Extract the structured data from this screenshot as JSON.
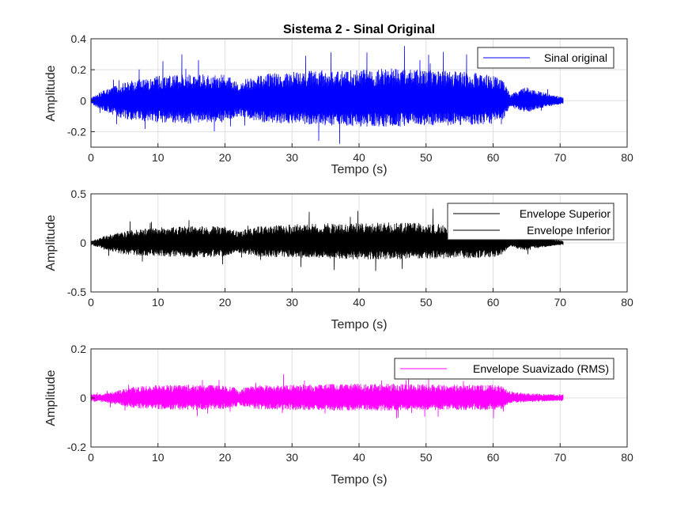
{
  "figure": {
    "background": "#ffffff"
  },
  "chart_data": [
    {
      "type": "line",
      "title": "Sistema 2 - Sinal Original",
      "xlabel": "Tempo (s)",
      "ylabel": "Amplitude",
      "xlim": [
        0,
        80
      ],
      "ylim": [
        -0.3,
        0.4
      ],
      "xticks": [
        0,
        10,
        20,
        30,
        40,
        50,
        60,
        70,
        80
      ],
      "yticks": [
        -0.2,
        0,
        0.2,
        0.4
      ],
      "ytick_labels": [
        "-0.2",
        "0",
        "0.2",
        "0.4"
      ],
      "grid": true,
      "legend_position": "top-right",
      "series": [
        {
          "name": "Sinal original",
          "color": "#0000ff",
          "x": [
            0,
            2,
            5,
            10,
            15,
            20,
            22,
            25,
            30,
            35,
            40,
            45,
            50,
            55,
            60,
            61.5,
            62.5,
            65,
            67,
            70.5
          ],
          "y_upper": [
            0.02,
            0.07,
            0.12,
            0.16,
            0.17,
            0.17,
            0.12,
            0.17,
            0.19,
            0.2,
            0.2,
            0.21,
            0.2,
            0.19,
            0.17,
            0.14,
            0.04,
            0.09,
            0.06,
            0.02
          ],
          "y_lower": [
            -0.02,
            -0.07,
            -0.12,
            -0.14,
            -0.15,
            -0.14,
            -0.1,
            -0.14,
            -0.15,
            -0.16,
            -0.17,
            -0.17,
            -0.16,
            -0.16,
            -0.15,
            -0.12,
            -0.04,
            -0.08,
            -0.05,
            -0.02
          ]
        }
      ]
    },
    {
      "type": "line",
      "title": "",
      "xlabel": "Tempo (s)",
      "ylabel": "Amplitude",
      "xlim": [
        0,
        80
      ],
      "ylim": [
        -0.5,
        0.5
      ],
      "xticks": [
        0,
        10,
        20,
        30,
        40,
        50,
        60,
        70,
        80
      ],
      "yticks": [
        -0.5,
        0,
        0.5
      ],
      "ytick_labels": [
        "-0.5",
        "0",
        "0.5"
      ],
      "grid": true,
      "legend_position": "top-right",
      "series": [
        {
          "name": "Envelope Superior",
          "color": "#000000",
          "x": [
            0,
            2,
            5,
            10,
            15,
            20,
            22,
            25,
            30,
            35,
            40,
            45,
            50,
            55,
            60,
            61.5,
            62.5,
            65,
            67,
            70.5
          ],
          "y_upper": [
            0.02,
            0.07,
            0.12,
            0.16,
            0.17,
            0.17,
            0.12,
            0.17,
            0.19,
            0.2,
            0.2,
            0.21,
            0.2,
            0.19,
            0.17,
            0.14,
            0.04,
            0.09,
            0.06,
            0.02
          ],
          "y_lower": [
            0,
            0,
            0,
            0,
            0,
            0,
            0,
            0,
            0,
            0,
            0,
            0,
            0,
            0,
            0,
            0,
            0,
            0,
            0,
            0
          ]
        },
        {
          "name": "Envelope Inferior",
          "color": "#000000",
          "x": [
            0,
            2,
            5,
            10,
            15,
            20,
            22,
            25,
            30,
            35,
            40,
            45,
            50,
            55,
            60,
            61.5,
            62.5,
            65,
            67,
            70.5
          ],
          "y_upper": [
            0,
            0,
            0,
            0,
            0,
            0,
            0,
            0,
            0,
            0,
            0,
            0,
            0,
            0,
            0,
            0,
            0,
            0,
            0,
            0
          ],
          "y_lower": [
            -0.02,
            -0.07,
            -0.12,
            -0.14,
            -0.15,
            -0.14,
            -0.1,
            -0.14,
            -0.15,
            -0.16,
            -0.17,
            -0.17,
            -0.16,
            -0.16,
            -0.15,
            -0.12,
            -0.04,
            -0.08,
            -0.05,
            -0.02
          ]
        }
      ]
    },
    {
      "type": "line",
      "title": "",
      "xlabel": "Tempo (s)",
      "ylabel": "Amplitude",
      "xlim": [
        0,
        80
      ],
      "ylim": [
        -0.2,
        0.2
      ],
      "xticks": [
        0,
        10,
        20,
        30,
        40,
        50,
        60,
        70,
        80
      ],
      "yticks": [
        -0.2,
        0,
        0.2
      ],
      "ytick_labels": [
        "-0.2",
        "0",
        "0.2"
      ],
      "grid": true,
      "legend_position": "top-right",
      "series": [
        {
          "name": "Envelope Suavizado (RMS)",
          "color": "#ff00ff",
          "x": [
            0,
            2,
            4,
            6,
            8,
            10,
            15,
            20,
            21.5,
            22,
            22.5,
            24,
            26,
            30,
            35,
            40,
            45,
            50,
            55,
            60,
            61.5,
            62,
            63,
            65,
            67,
            70.5
          ],
          "y_upper": [
            0.015,
            0.018,
            0.03,
            0.045,
            0.05,
            0.052,
            0.055,
            0.05,
            0.045,
            0.03,
            0.04,
            0.05,
            0.052,
            0.055,
            0.057,
            0.058,
            0.058,
            0.056,
            0.055,
            0.055,
            0.05,
            0.035,
            0.025,
            0.02,
            0.017,
            0.015
          ],
          "y_lower": [
            -0.015,
            -0.018,
            -0.03,
            -0.04,
            -0.045,
            -0.047,
            -0.05,
            -0.045,
            -0.04,
            -0.025,
            -0.035,
            -0.045,
            -0.047,
            -0.05,
            -0.052,
            -0.053,
            -0.052,
            -0.05,
            -0.05,
            -0.05,
            -0.045,
            -0.03,
            -0.02,
            -0.018,
            -0.015,
            -0.013
          ]
        }
      ]
    }
  ]
}
